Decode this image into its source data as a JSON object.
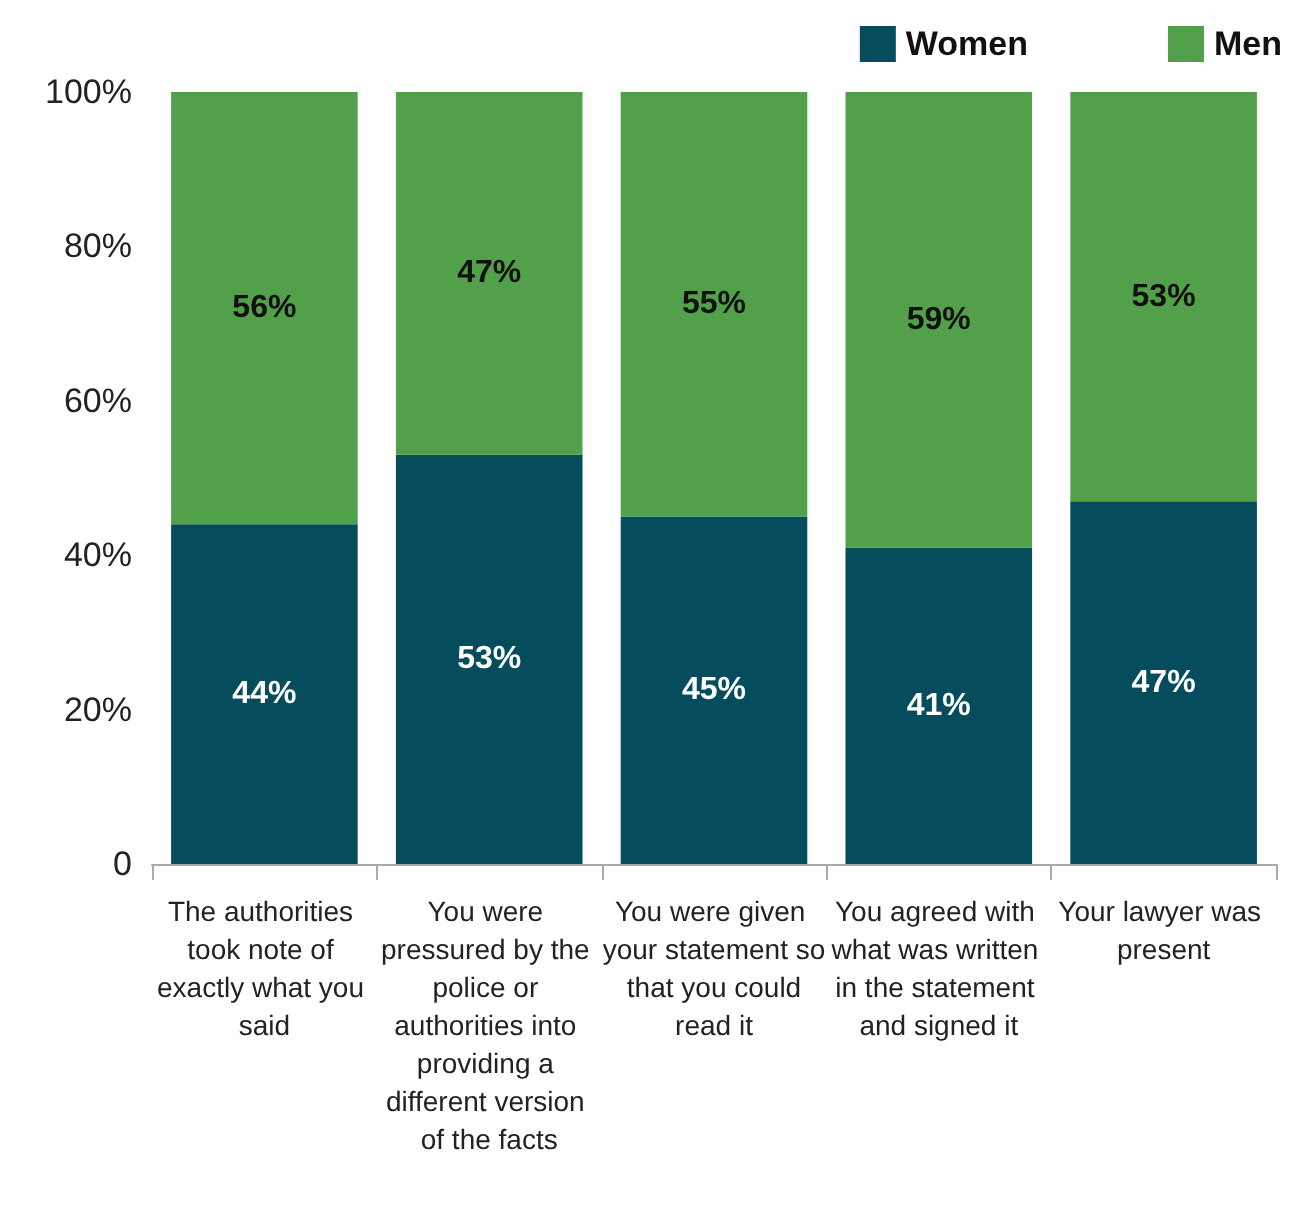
{
  "chart_data": {
    "type": "bar",
    "stacked": true,
    "categories": [
      "The authorities took note of exactly what you said",
      "You were pressured by the police or authorities into providing a different version of the facts",
      "You were given your statement so that you could read it",
      "You agreed with what was written in the statement and signed it",
      "Your lawyer was present"
    ],
    "series": [
      {
        "name": "Women",
        "color": "#054c5c",
        "values": [
          44,
          53,
          45,
          41,
          47
        ],
        "value_labels": [
          "44%",
          "53%",
          "45%",
          "41%",
          "47%"
        ]
      },
      {
        "name": "Men",
        "color": "#53a04b",
        "values": [
          56,
          47,
          55,
          59,
          53
        ],
        "value_labels": [
          "56%",
          "47%",
          "55%",
          "59%",
          "53%"
        ]
      }
    ],
    "ylim": [
      0,
      100
    ],
    "yticks": [
      0,
      {
        "value": 20,
        "label": "20%"
      },
      {
        "value": 40,
        "label": "40%"
      },
      {
        "value": 60,
        "label": "60%"
      },
      {
        "value": 80,
        "label": "80%"
      },
      {
        "value": 100,
        "label": "100%"
      }
    ],
    "grid": false,
    "legend": "top right"
  }
}
